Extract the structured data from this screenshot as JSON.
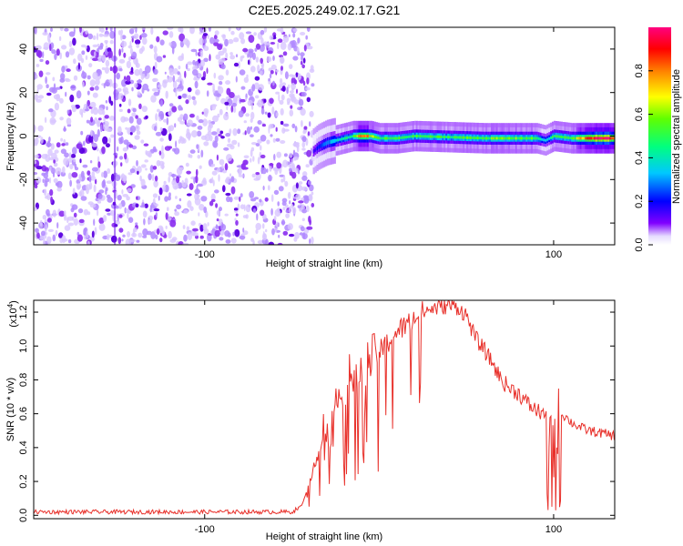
{
  "figure": {
    "title": "C2E5.2025.249.02.17.G21"
  },
  "chart_data": [
    {
      "type": "heatmap",
      "title": "C2E5.2025.249.02.17.G21",
      "xlabel": "Height of straight line (km)",
      "ylabel": "Frequency (Hz)",
      "xlim": [
        -198,
        135
      ],
      "ylim": [
        -50,
        50
      ],
      "x_ticks": [
        -100,
        100
      ],
      "x_tick_labels": [
        "-100",
        "100"
      ],
      "y_ticks": [
        -40,
        -20,
        0,
        20,
        40
      ],
      "y_tick_labels": [
        "-40",
        "-20",
        "0",
        "20",
        "40"
      ],
      "colorbar": {
        "label": "Normalized spectral amplitude",
        "range": [
          0.0,
          1.0
        ],
        "ticks": [
          0.0,
          0.2,
          0.4,
          0.6,
          0.8
        ],
        "tick_labels": [
          "0.0",
          "0.2",
          "0.4",
          "0.6",
          "0.8"
        ],
        "colors": [
          "#ffffff",
          "#d9c7ff",
          "#7f00ff",
          "#0000ff",
          "#00c8ff",
          "#00ff80",
          "#80ff00",
          "#ffff00",
          "#ff8000",
          "#ff0000",
          "#ff0080"
        ]
      },
      "noise_region": {
        "x_range": [
          -198,
          -38
        ],
        "freq_range": [
          -50,
          50
        ],
        "amplitude": 0.05
      },
      "signal_track": {
        "x": [
          -38,
          -35,
          -30,
          -25,
          -20,
          -15,
          -10,
          -5,
          0,
          10,
          20,
          40,
          60,
          80,
          90,
          95,
          100,
          110,
          120,
          135
        ],
        "freq": [
          -7,
          -5,
          -3,
          -2,
          -1,
          0,
          0,
          0,
          -1,
          -1,
          0,
          -0.5,
          -1,
          -1,
          -1,
          -2,
          0,
          -1,
          -1,
          -1
        ],
        "amplitude": [
          0.15,
          0.2,
          0.3,
          0.35,
          0.4,
          0.5,
          0.9,
          0.6,
          0.5,
          0.5,
          0.5,
          0.5,
          0.55,
          0.55,
          0.5,
          0.3,
          0.5,
          0.5,
          0.95,
          0.95
        ]
      }
    },
    {
      "type": "line",
      "xlabel": "Height of straight line (km)",
      "ylabel": "SNR (10 * v/v)",
      "y_multiplier": "(x10⁴)",
      "y_multiplier_base": "(x10",
      "y_multiplier_exp": "4",
      "y_multiplier_close": ")",
      "xlim": [
        -198,
        135
      ],
      "ylim": [
        -0.02,
        1.27
      ],
      "x_ticks": [
        -100,
        100
      ],
      "x_tick_labels": [
        "-100",
        "100"
      ],
      "y_ticks": [
        0.0,
        0.2,
        0.4,
        0.6,
        0.8,
        1.0,
        1.2
      ],
      "y_tick_labels": [
        "0.0",
        "0.2",
        "0.4",
        "0.6",
        "0.8",
        "1.0",
        "1.2"
      ],
      "series": [
        {
          "name": "SNR",
          "color": "#e8302a",
          "x": [
            -198,
            -180,
            -160,
            -140,
            -120,
            -100,
            -80,
            -60,
            -50,
            -45,
            -40,
            -35,
            -32,
            -28,
            -25,
            -22,
            -20,
            -18,
            -15,
            -12,
            -10,
            -8,
            -5,
            -2,
            0,
            5,
            10,
            15,
            20,
            25,
            30,
            35,
            40,
            45,
            50,
            55,
            60,
            65,
            70,
            75,
            80,
            85,
            90,
            95,
            98,
            100,
            102,
            105,
            110,
            115,
            120,
            125,
            130,
            135
          ],
          "values": [
            0.02,
            0.02,
            0.02,
            0.02,
            0.02,
            0.02,
            0.02,
            0.02,
            0.02,
            0.05,
            0.2,
            0.35,
            0.55,
            0.45,
            0.7,
            0.8,
            0.5,
            0.88,
            0.75,
            0.8,
            0.86,
            0.9,
            0.92,
            0.95,
            0.96,
            1.02,
            1.08,
            1.12,
            1.16,
            1.2,
            1.22,
            1.23,
            1.24,
            1.23,
            1.18,
            1.05,
            0.98,
            0.9,
            0.8,
            0.75,
            0.72,
            0.66,
            0.62,
            0.6,
            0.45,
            0.35,
            0.55,
            0.6,
            0.55,
            0.52,
            0.5,
            0.49,
            0.48,
            0.47
          ]
        }
      ]
    }
  ]
}
